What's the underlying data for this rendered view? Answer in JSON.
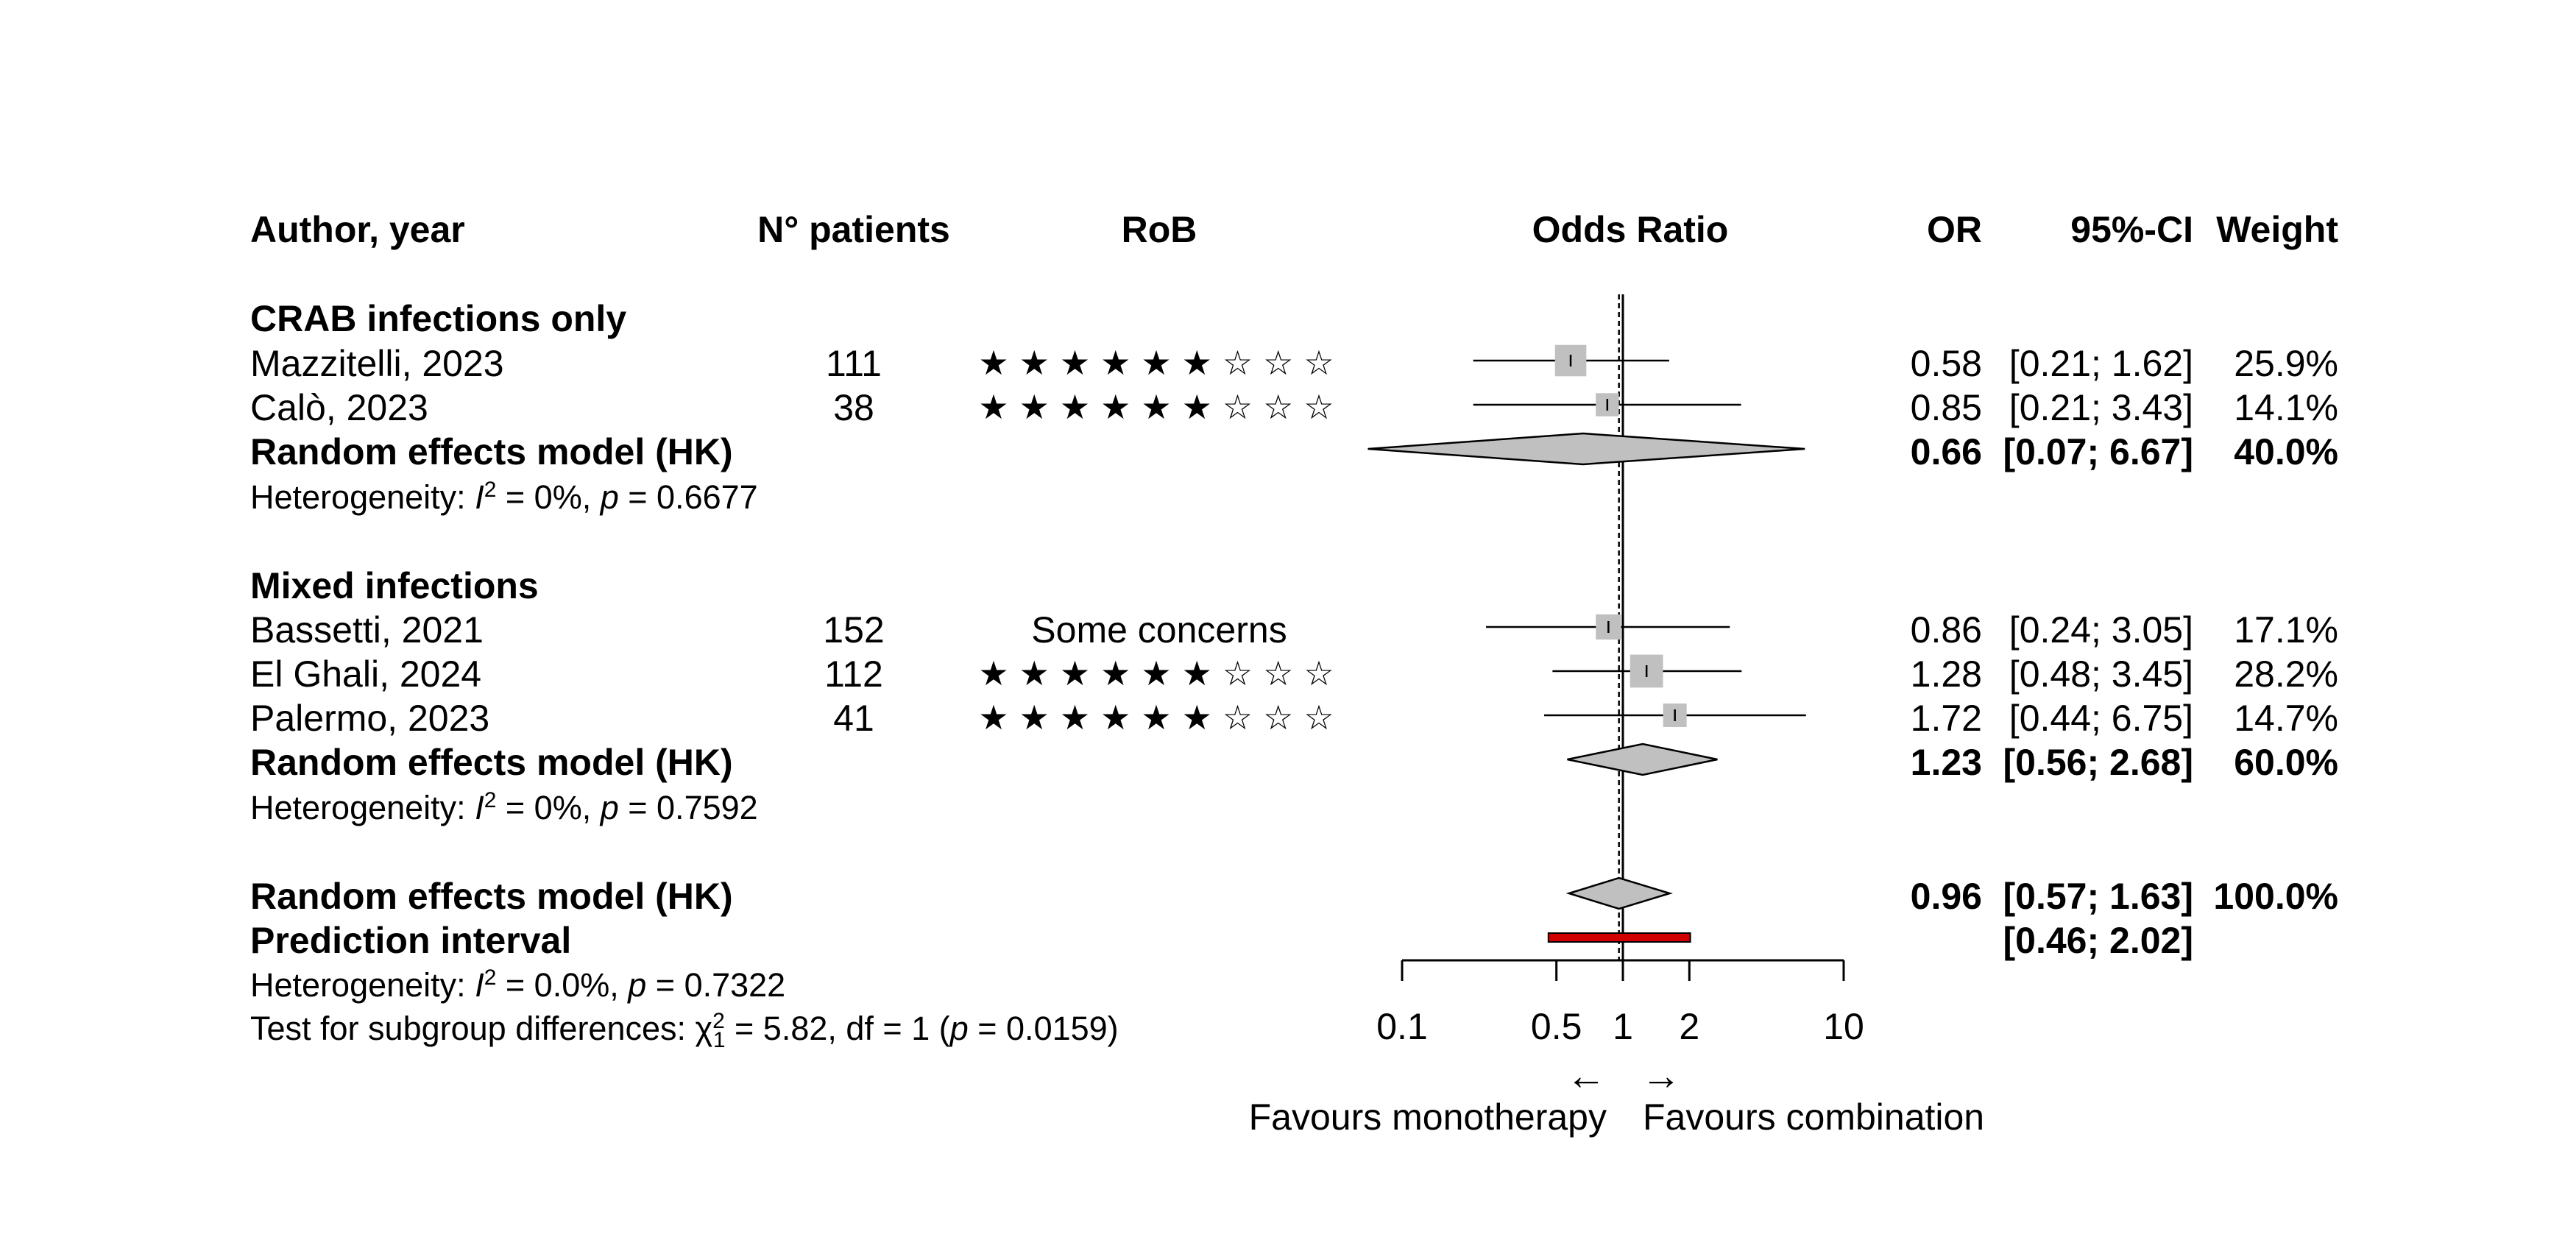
{
  "header": {
    "author": "Author, year",
    "patients": "N° patients",
    "rob": "RoB",
    "effect": "Odds Ratio",
    "or": "OR",
    "ci": "95%-CI",
    "weight": "Weight"
  },
  "groups": [
    {
      "title": "CRAB infections only",
      "studies": [
        {
          "author": "Mazzitelli, 2023",
          "n": "111",
          "rob": "★★★★★★☆☆☆",
          "or": "0.58",
          "ci": "[0.21; 1.62]",
          "weight": "25.9%"
        },
        {
          "author": "Calò, 2023",
          "n": "38",
          "rob": "★★★★★★☆☆☆",
          "or": "0.85",
          "ci": "[0.21; 3.43]",
          "weight": "14.1%"
        }
      ],
      "model": {
        "label": "Random effects model (HK)",
        "or": "0.66",
        "ci": "[0.07; 6.67]",
        "weight": "40.0%"
      },
      "heterogeneity": {
        "prefix": "Heterogeneity: ",
        "i2_label": "I",
        "i2_sup": "2",
        "i2_value": " = 0%, ",
        "p_label": "p",
        "p_value": " = 0.6677"
      }
    },
    {
      "title": "Mixed infections",
      "studies": [
        {
          "author": "Bassetti, 2021",
          "n": "152",
          "rob": "Some concerns",
          "or": "0.86",
          "ci": "[0.24; 3.05]",
          "weight": "17.1%"
        },
        {
          "author": "El Ghali, 2024",
          "n": "112",
          "rob": "★★★★★★☆☆☆",
          "or": "1.28",
          "ci": "[0.48; 3.45]",
          "weight": "28.2%"
        },
        {
          "author": "Palermo, 2023",
          "n": "41",
          "rob": "★★★★★★☆☆☆",
          "or": "1.72",
          "ci": "[0.44; 6.75]",
          "weight": "14.7%"
        }
      ],
      "model": {
        "label": "Random effects model (HK)",
        "or": "1.23",
        "ci": "[0.56; 2.68]",
        "weight": "60.0%"
      },
      "heterogeneity": {
        "prefix": "Heterogeneity: ",
        "i2_label": "I",
        "i2_sup": "2",
        "i2_value": " = 0%, ",
        "p_label": "p",
        "p_value": " = 0.7592"
      }
    }
  ],
  "overall": {
    "model": {
      "label": "Random effects model (HK)",
      "or": "0.96",
      "ci": "[0.57; 1.63]",
      "weight": "100.0%"
    },
    "prediction": {
      "label": "Prediction interval",
      "ci": "[0.46; 2.02]"
    },
    "heterogeneity": {
      "prefix": "Heterogeneity: ",
      "i2_label": "I",
      "i2_sup": "2",
      "i2_value": " = 0.0%, ",
      "p_label": "p",
      "p_value": " = 0.7322"
    },
    "subgroup_test": {
      "prefix": "Test for subgroup differences: χ",
      "chi_sup": "2",
      "chi_sub": "1",
      "stat": " = 5.82, df = 1 (",
      "p_label": "p",
      "p_value": " = 0.0159)"
    }
  },
  "axis": {
    "ticks": [
      "0.1",
      "0.5",
      "1",
      "2",
      "10"
    ],
    "arrow_left": "←",
    "arrow_right": "→",
    "favours_left": "Favours monotherapy",
    "favours_right": "Favours combination"
  },
  "colors": {
    "box": "#c0c0c0",
    "diamond": "#c0c0c0",
    "prediction": "#d00000"
  },
  "chart_data": {
    "type": "forest",
    "measure": "Odds Ratio",
    "x_scale": "log",
    "xlim": [
      0.1,
      10
    ],
    "x_ticks": [
      0.1,
      0.5,
      1,
      2,
      10
    ],
    "reference_line": 1,
    "overall_line": 0.96,
    "studies": [
      {
        "group": "CRAB infections only",
        "author": "Mazzitelli, 2023",
        "n": 111,
        "or": 0.58,
        "lower": 0.21,
        "upper": 1.62,
        "weight": 25.9
      },
      {
        "group": "CRAB infections only",
        "author": "Calò, 2023",
        "n": 38,
        "or": 0.85,
        "lower": 0.21,
        "upper": 3.43,
        "weight": 14.1
      },
      {
        "group": "Mixed infections",
        "author": "Bassetti, 2021",
        "n": 152,
        "or": 0.86,
        "lower": 0.24,
        "upper": 3.05,
        "weight": 17.1
      },
      {
        "group": "Mixed infections",
        "author": "El Ghali, 2024",
        "n": 112,
        "or": 1.28,
        "lower": 0.48,
        "upper": 3.45,
        "weight": 28.2
      },
      {
        "group": "Mixed infections",
        "author": "Palermo, 2023",
        "n": 41,
        "or": 1.72,
        "lower": 0.44,
        "upper": 6.75,
        "weight": 14.7
      }
    ],
    "subgroup_models": [
      {
        "group": "CRAB infections only",
        "or": 0.66,
        "lower": 0.07,
        "upper": 6.67,
        "weight": 40.0
      },
      {
        "group": "Mixed infections",
        "or": 1.23,
        "lower": 0.56,
        "upper": 2.68,
        "weight": 60.0
      }
    ],
    "overall_model": {
      "or": 0.96,
      "lower": 0.57,
      "upper": 1.63,
      "weight": 100.0
    },
    "prediction_interval": {
      "lower": 0.46,
      "upper": 2.02
    }
  }
}
